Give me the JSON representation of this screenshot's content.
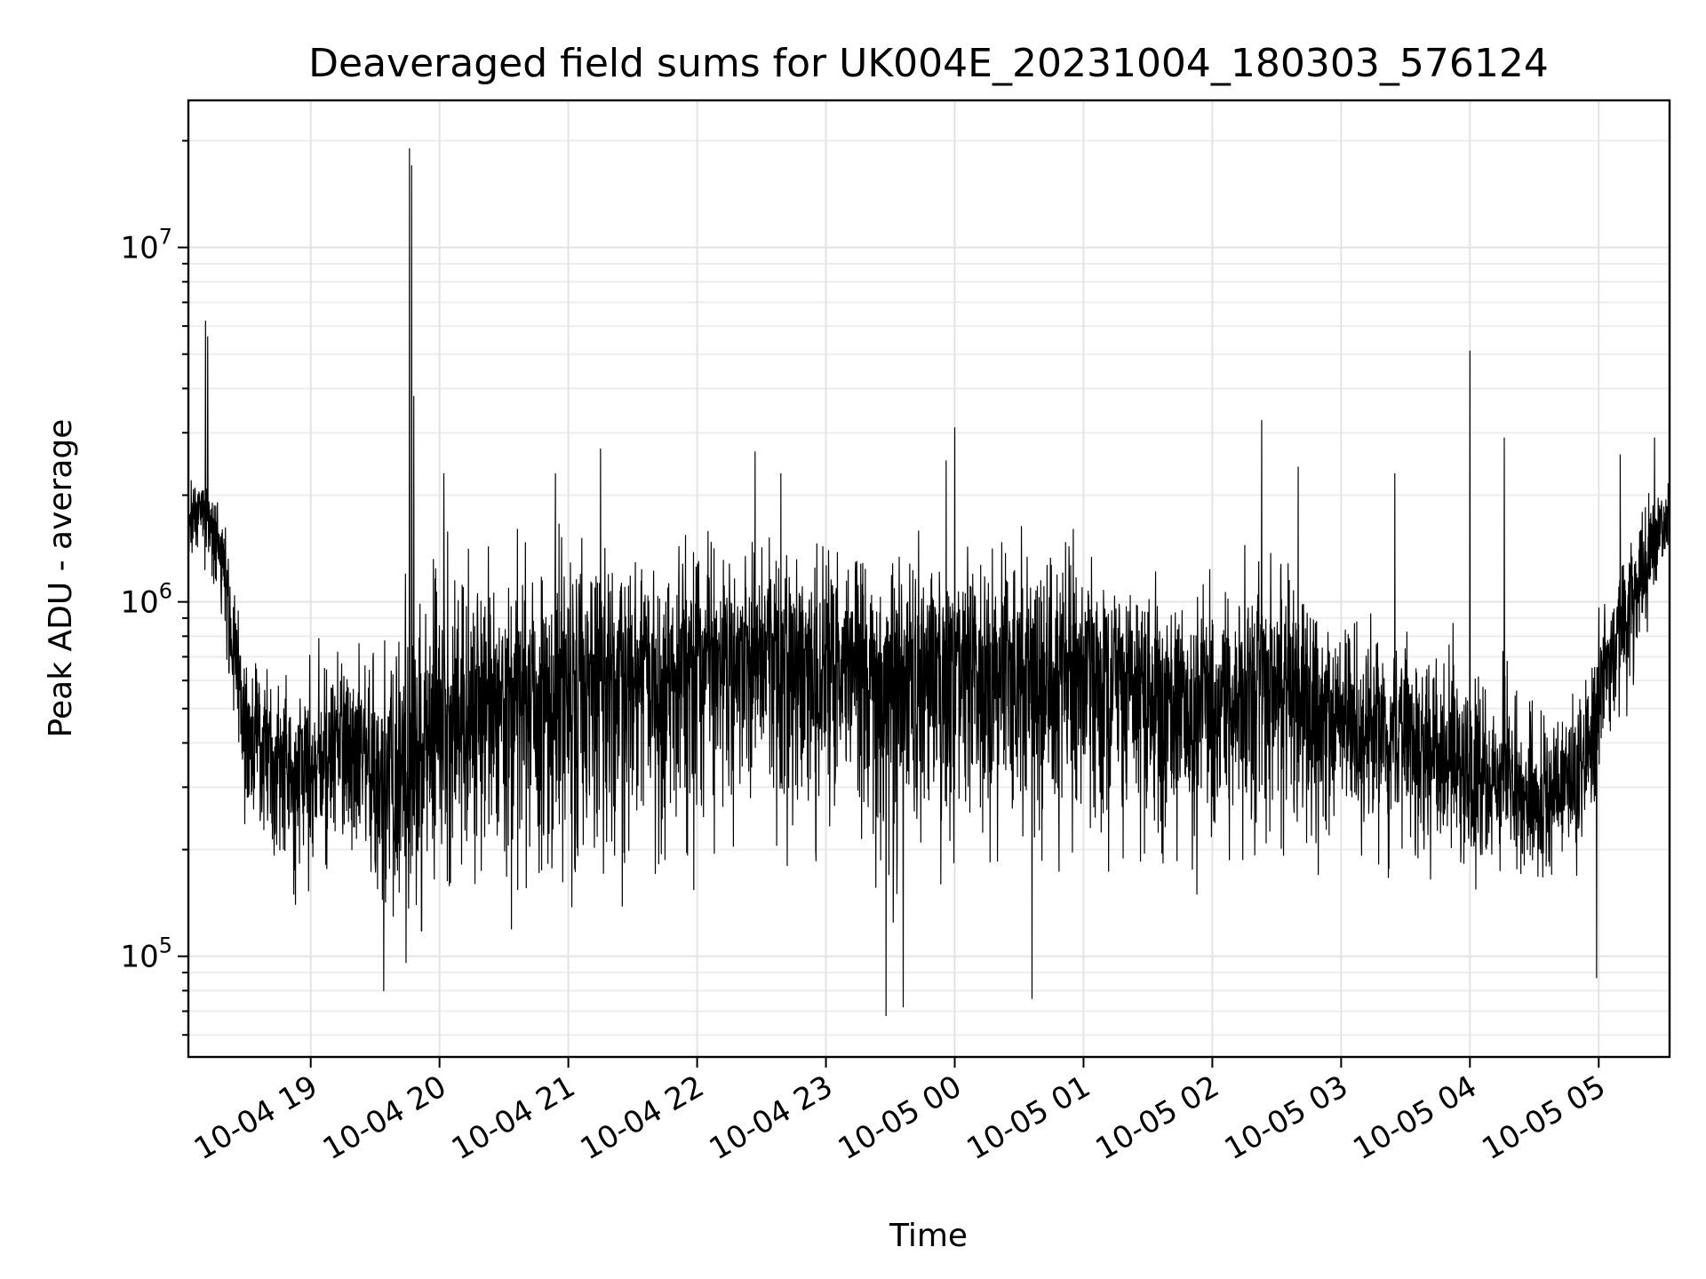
{
  "chart_data": {
    "type": "line",
    "title": "Deaveraged field sums for UK004E_20231004_180303_576124",
    "xlabel": "Time",
    "ylabel": "Peak ADU - average",
    "xlim": [
      "2023-10-04 18:03",
      "2023-10-05 05:33"
    ],
    "ylim": [
      52000,
      26000000
    ],
    "y_scale": "log",
    "grid": true,
    "line_color": "#000000",
    "x_tick_labels": [
      "10-04 19",
      "10-04 20",
      "10-04 21",
      "10-04 22",
      "10-04 23",
      "10-05 00",
      "10-05 01",
      "10-05 02",
      "10-05 03",
      "10-05 04",
      "10-05 05"
    ],
    "x_tick_times": [
      "2023-10-04 19:00",
      "2023-10-04 20:00",
      "2023-10-04 21:00",
      "2023-10-04 22:00",
      "2023-10-04 23:00",
      "2023-10-05 00:00",
      "2023-10-05 01:00",
      "2023-10-05 02:00",
      "2023-10-05 03:00",
      "2023-10-05 04:00",
      "2023-10-05 05:00"
    ],
    "y_tick_labels": [
      {
        "base": "10",
        "exp": "5",
        "value": 100000
      },
      {
        "base": "10",
        "exp": "6",
        "value": 1000000
      },
      {
        "base": "10",
        "exp": "7",
        "value": 10000000
      }
    ],
    "series": [
      {
        "envelope": [
          {
            "t": "2023-10-04 18:03",
            "mean": 1600000,
            "low": 1100000,
            "high": 2300000
          },
          {
            "t": "2023-10-04 18:10",
            "mean": 1900000,
            "low": 1200000,
            "high": 2400000
          },
          {
            "t": "2023-10-04 18:20",
            "mean": 1300000,
            "low": 600000,
            "high": 1900000
          },
          {
            "t": "2023-10-04 18:30",
            "mean": 420000,
            "low": 180000,
            "high": 800000
          },
          {
            "t": "2023-10-04 18:45",
            "mean": 380000,
            "low": 140000,
            "high": 750000
          },
          {
            "t": "2023-10-04 19:00",
            "mean": 320000,
            "low": 130000,
            "high": 750000
          },
          {
            "t": "2023-10-04 19:15",
            "mean": 450000,
            "low": 150000,
            "high": 1000000
          },
          {
            "t": "2023-10-04 19:30",
            "mean": 300000,
            "low": 110000,
            "high": 900000
          },
          {
            "t": "2023-10-04 19:45",
            "mean": 350000,
            "low": 95000,
            "high": 1700000
          },
          {
            "t": "2023-10-04 20:00",
            "mean": 450000,
            "low": 100000,
            "high": 1600000
          },
          {
            "t": "2023-10-04 20:30",
            "mean": 500000,
            "low": 110000,
            "high": 1700000
          },
          {
            "t": "2023-10-04 21:00",
            "mean": 550000,
            "low": 110000,
            "high": 1700000
          },
          {
            "t": "2023-10-04 21:30",
            "mean": 600000,
            "low": 130000,
            "high": 1700000
          },
          {
            "t": "2023-10-04 22:00",
            "mean": 700000,
            "low": 150000,
            "high": 1750000
          },
          {
            "t": "2023-10-04 22:30",
            "mean": 750000,
            "low": 180000,
            "high": 1800000
          },
          {
            "t": "2023-10-04 23:00",
            "mean": 700000,
            "low": 160000,
            "high": 1750000
          },
          {
            "t": "2023-10-04 23:30",
            "mean": 650000,
            "low": 120000,
            "high": 1700000
          },
          {
            "t": "2023-10-05 00:00",
            "mean": 700000,
            "low": 130000,
            "high": 1700000
          },
          {
            "t": "2023-10-05 00:30",
            "mean": 650000,
            "low": 120000,
            "high": 1650000
          },
          {
            "t": "2023-10-05 01:00",
            "mean": 650000,
            "low": 150000,
            "high": 1650000
          },
          {
            "t": "2023-10-05 01:30",
            "mean": 580000,
            "low": 140000,
            "high": 1400000
          },
          {
            "t": "2023-10-05 02:00",
            "mean": 550000,
            "low": 150000,
            "high": 1300000
          },
          {
            "t": "2023-10-05 02:30",
            "mean": 600000,
            "low": 170000,
            "high": 1600000
          },
          {
            "t": "2023-10-05 03:00",
            "mean": 480000,
            "low": 160000,
            "high": 1100000
          },
          {
            "t": "2023-10-05 03:30",
            "mean": 420000,
            "low": 150000,
            "high": 1000000
          },
          {
            "t": "2023-10-05 04:00",
            "mean": 330000,
            "low": 140000,
            "high": 850000
          },
          {
            "t": "2023-10-05 04:30",
            "mean": 280000,
            "low": 140000,
            "high": 650000
          },
          {
            "t": "2023-10-05 04:50",
            "mean": 300000,
            "low": 150000,
            "high": 700000
          },
          {
            "t": "2023-10-05 05:10",
            "mean": 900000,
            "low": 400000,
            "high": 1600000
          },
          {
            "t": "2023-10-05 05:33",
            "mean": 1800000,
            "low": 1200000,
            "high": 2700000
          }
        ],
        "spikes": [
          {
            "t": "2023-10-04 18:11",
            "value": 6200000
          },
          {
            "t": "2023-10-04 18:12",
            "value": 5600000
          },
          {
            "t": "2023-10-04 19:46",
            "value": 19000000
          },
          {
            "t": "2023-10-04 19:47",
            "value": 17000000
          },
          {
            "t": "2023-10-04 19:48",
            "value": 3800000
          },
          {
            "t": "2023-10-04 20:02",
            "value": 2300000
          },
          {
            "t": "2023-10-04 20:54",
            "value": 2300000
          },
          {
            "t": "2023-10-04 21:15",
            "value": 2700000
          },
          {
            "t": "2023-10-04 22:27",
            "value": 2650000
          },
          {
            "t": "2023-10-04 22:39",
            "value": 2300000
          },
          {
            "t": "2023-10-04 23:56",
            "value": 2500000
          },
          {
            "t": "2023-10-05 00:00",
            "value": 3100000
          },
          {
            "t": "2023-10-05 02:23",
            "value": 3250000
          },
          {
            "t": "2023-10-05 02:40",
            "value": 2400000
          },
          {
            "t": "2023-10-05 03:25",
            "value": 2300000
          },
          {
            "t": "2023-10-05 04:00",
            "value": 5100000
          },
          {
            "t": "2023-10-05 04:16",
            "value": 2900000
          },
          {
            "t": "2023-10-05 05:10",
            "value": 2600000
          },
          {
            "t": "2023-10-05 05:26",
            "value": 2900000
          },
          {
            "t": "2023-10-04 23:28",
            "value": 68000
          },
          {
            "t": "2023-10-04 23:36",
            "value": 72000
          },
          {
            "t": "2023-10-05 00:36",
            "value": 76000
          },
          {
            "t": "2023-10-04 19:34",
            "value": 80000
          },
          {
            "t": "2023-10-05 04:59",
            "value": 87000
          }
        ]
      }
    ]
  }
}
